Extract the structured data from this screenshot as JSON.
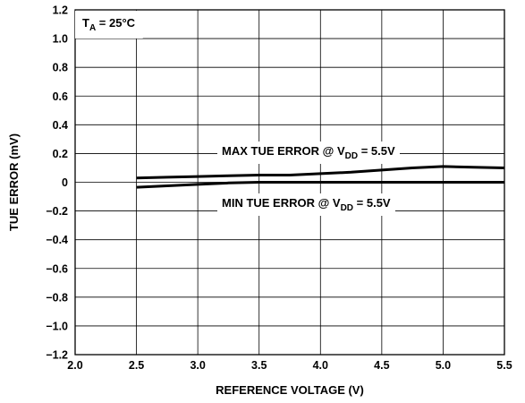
{
  "chart_data": {
    "type": "line",
    "title": "",
    "xlabel": "REFERENCE VOLTAGE (V)",
    "ylabel": "TUE ERROR (mV)",
    "xlim": [
      2.0,
      5.5
    ],
    "ylim": [
      -1.2,
      1.2
    ],
    "x_ticks": [
      "2.0",
      "2.5",
      "3.0",
      "3.5",
      "4.0",
      "4.5",
      "5.0",
      "5.5"
    ],
    "y_ticks": [
      "1.2",
      "1.0",
      "0.8",
      "0.6",
      "0.4",
      "0.2",
      "0",
      "−0.2",
      "−0.4",
      "−0.6",
      "−0.8",
      "−1.0",
      "−1.2"
    ],
    "grid": true,
    "condition": {
      "prefix": "T",
      "sub": "A",
      "suffix": " = 25°C"
    },
    "series": [
      {
        "name": "MAX TUE ERROR @ VDD = 5.5V",
        "label_pre": "MAX TUE ERROR @ V",
        "label_sub": "DD",
        "label_post": " = 5.5V",
        "x": [
          2.5,
          2.75,
          3.0,
          3.25,
          3.5,
          3.75,
          4.0,
          4.25,
          4.5,
          4.75,
          5.0,
          5.25,
          5.5
        ],
        "y": [
          0.03,
          0.035,
          0.04,
          0.045,
          0.05,
          0.05,
          0.06,
          0.07,
          0.085,
          0.1,
          0.11,
          0.105,
          0.1
        ]
      },
      {
        "name": "MIN TUE ERROR @ VDD = 5.5V",
        "label_pre": "MIN TUE ERROR @ V",
        "label_sub": "DD",
        "label_post": " = 5.5V",
        "x": [
          2.5,
          2.75,
          3.0,
          3.25,
          3.5,
          3.75,
          4.0,
          4.25,
          4.5,
          4.75,
          5.0,
          5.25,
          5.5
        ],
        "y": [
          -0.035,
          -0.025,
          -0.015,
          -0.005,
          0.0,
          0.0,
          0.0,
          0.0,
          0.0,
          0.0,
          0.0,
          0.0,
          0.0
        ]
      }
    ]
  }
}
